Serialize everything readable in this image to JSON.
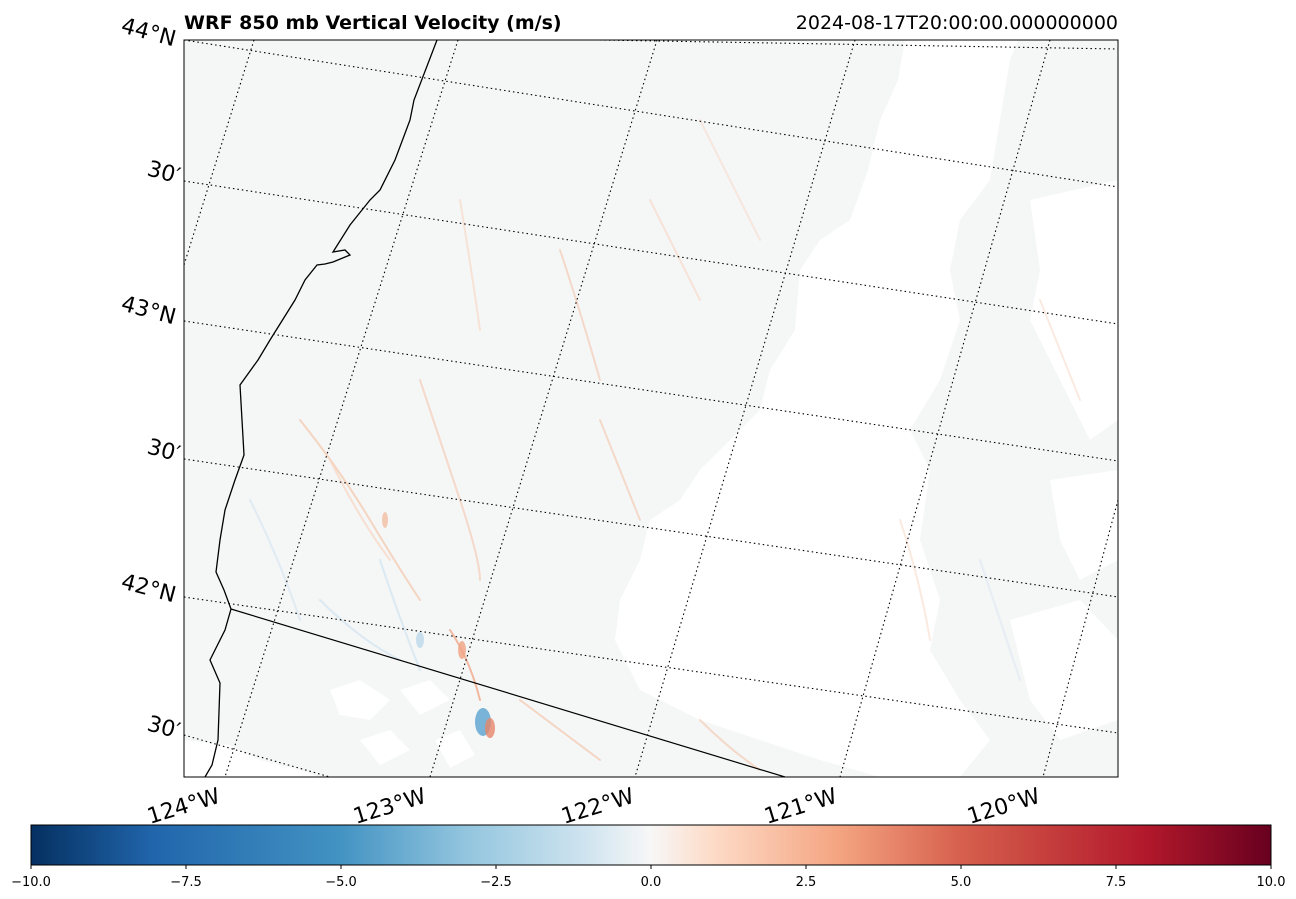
{
  "title": "WRF 850 mb Vertical Velocity (m/s)",
  "timestamp": "2024-08-17T20:00:00.000000000",
  "lat_labels": [
    "44°N",
    "30′",
    "43°N",
    "30′",
    "42°N",
    "30′"
  ],
  "lon_labels": [
    "124°W",
    "123°W",
    "122°W",
    "121°W",
    "120°W"
  ],
  "colorbar": {
    "ticks": [
      "−10.0",
      "−7.5",
      "−5.0",
      "−2.5",
      "0.0",
      "2.5",
      "5.0",
      "7.5",
      "10.0"
    ],
    "vmin": -10,
    "vmax": 10,
    "colormap": "RdBu_r",
    "colors": [
      "#053061",
      "#2166ac",
      "#4393c3",
      "#92c5de",
      "#d1e5f0",
      "#f7f7f7",
      "#fddbc7",
      "#f4a582",
      "#d6604d",
      "#b2182b",
      "#67001f"
    ]
  },
  "map": {
    "field": "850 mb vertical velocity",
    "units": "m/s",
    "value_range_shown": [
      -2.5,
      2.5
    ],
    "background_color": "#f5f6f6",
    "missing_color": "#ffffff",
    "gridline_style": "dotted"
  }
}
